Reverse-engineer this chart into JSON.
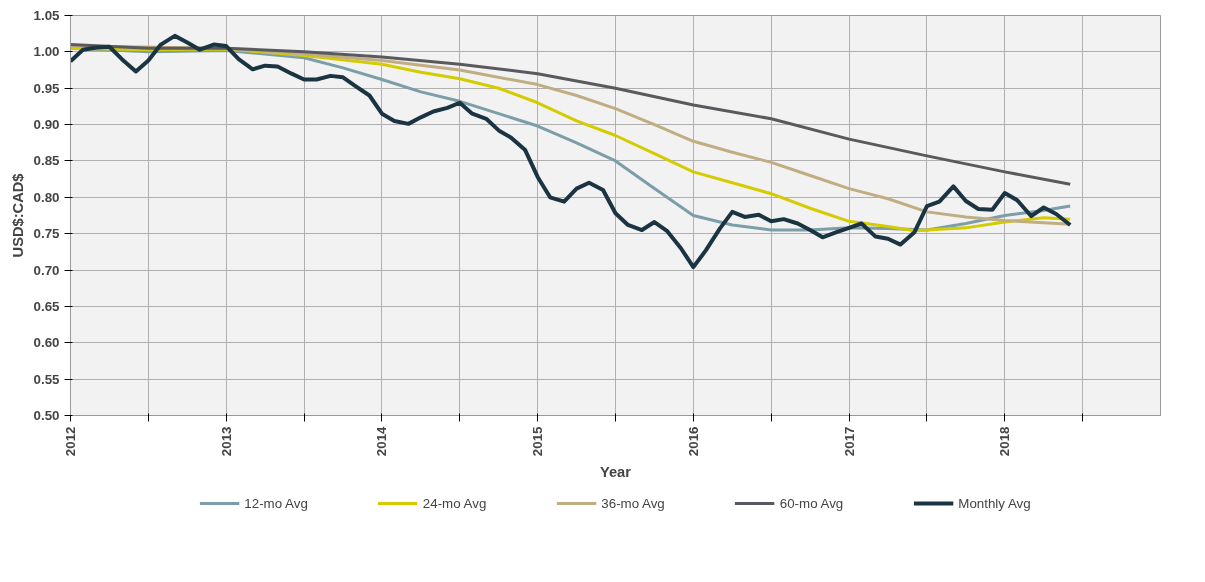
{
  "chart_data": {
    "type": "line",
    "xlabel": "Year",
    "ylabel": "USD$:CAD$",
    "xlim": [
      2012,
      2019
    ],
    "ylim": [
      0.5,
      1.05
    ],
    "xticks": [
      2012,
      {
        "value": 2012.5,
        "label": null
      },
      2013,
      {
        "value": 2013.5,
        "label": null
      },
      2014,
      {
        "value": 2014.5,
        "label": null
      },
      2015,
      {
        "value": 2015.5,
        "label": null
      },
      2016,
      {
        "value": 2016.5,
        "label": null
      },
      2017,
      {
        "value": 2017.5,
        "label": null
      },
      2018,
      {
        "value": 2018.5,
        "label": null
      }
    ],
    "yticks": [
      {
        "value": 0.5,
        "label": "0.50"
      },
      {
        "value": 0.55,
        "label": "0.55"
      },
      {
        "value": 0.6,
        "label": "0.60"
      },
      {
        "value": 0.65,
        "label": "0.65"
      },
      {
        "value": 0.7,
        "label": "0.70"
      },
      {
        "value": 0.75,
        "label": "0.75"
      },
      {
        "value": 0.8,
        "label": "0.80"
      },
      {
        "value": 0.85,
        "label": "0.85"
      },
      {
        "value": 0.9,
        "label": "0.90"
      },
      {
        "value": 0.95,
        "label": "0.95"
      },
      {
        "value": 1.0,
        "label": "1.00"
      },
      {
        "value": 1.05,
        "label": "1.05"
      }
    ],
    "grid": true,
    "legend": "bottom",
    "marker": "none",
    "line_style": "solid",
    "series": [
      {
        "name": "12-mo Avg",
        "color": "#7b9ea8",
        "x": [
          2012,
          2012.5,
          2013,
          2013.5,
          2013.75,
          2014,
          2014.25,
          2014.5,
          2014.75,
          2015,
          2015.25,
          2015.5,
          2015.75,
          2016,
          2016.25,
          2016.5,
          2016.75,
          2017,
          2017.25,
          2017.5,
          2017.75,
          2018,
          2018.25,
          2018.42
        ],
        "values": [
          1.005,
          1.0,
          1.002,
          0.992,
          0.978,
          0.962,
          0.945,
          0.932,
          0.915,
          0.898,
          0.875,
          0.85,
          0.812,
          0.775,
          0.762,
          0.755,
          0.755,
          0.758,
          0.757,
          0.755,
          0.764,
          0.775,
          0.782,
          0.788
        ]
      },
      {
        "name": "24-mo Avg",
        "color": "#d4cc00",
        "x": [
          2012,
          2012.5,
          2013,
          2013.5,
          2014,
          2014.25,
          2014.5,
          2014.75,
          2015,
          2015.25,
          2015.5,
          2015.75,
          2016,
          2016.25,
          2016.5,
          2016.75,
          2017,
          2017.25,
          2017.42,
          2017.75,
          2018,
          2018.25,
          2018.42
        ],
        "values": [
          1.005,
          1.003,
          1.004,
          0.995,
          0.983,
          0.972,
          0.963,
          0.95,
          0.93,
          0.905,
          0.885,
          0.86,
          0.835,
          0.82,
          0.805,
          0.785,
          0.767,
          0.76,
          0.754,
          0.758,
          0.766,
          0.772,
          0.77
        ]
      },
      {
        "name": "36-mo Avg",
        "color": "#c0ae82",
        "x": [
          2012,
          2013,
          2013.5,
          2014,
          2014.5,
          2015,
          2015.25,
          2015.5,
          2015.75,
          2016,
          2016.25,
          2016.5,
          2016.75,
          2017,
          2017.25,
          2017.5,
          2017.75,
          2018,
          2018.42
        ],
        "values": [
          1.008,
          1.005,
          0.997,
          0.988,
          0.975,
          0.955,
          0.94,
          0.922,
          0.9,
          0.877,
          0.862,
          0.848,
          0.83,
          0.812,
          0.798,
          0.78,
          0.773,
          0.768,
          0.763
        ]
      },
      {
        "name": "60-mo Avg",
        "color": "#5a5a5e",
        "x": [
          2012,
          2012.5,
          2013,
          2013.5,
          2014,
          2014.5,
          2015,
          2015.5,
          2016,
          2016.5,
          2017,
          2017.5,
          2018,
          2018.42
        ],
        "values": [
          1.01,
          1.005,
          1.005,
          1.0,
          0.993,
          0.983,
          0.97,
          0.95,
          0.927,
          0.908,
          0.88,
          0.857,
          0.835,
          0.818
        ]
      },
      {
        "name": "Monthly Avg",
        "color": "#1b3442",
        "x": [
          2012,
          2012.08,
          2012.17,
          2012.25,
          2012.33,
          2012.42,
          2012.5,
          2012.58,
          2012.67,
          2012.75,
          2012.83,
          2012.92,
          2013,
          2013.08,
          2013.17,
          2013.25,
          2013.33,
          2013.42,
          2013.5,
          2013.58,
          2013.67,
          2013.75,
          2013.83,
          2013.92,
          2014,
          2014.08,
          2014.17,
          2014.25,
          2014.33,
          2014.42,
          2014.5,
          2014.58,
          2014.67,
          2014.75,
          2014.83,
          2014.92,
          2015,
          2015.08,
          2015.17,
          2015.25,
          2015.33,
          2015.42,
          2015.5,
          2015.58,
          2015.67,
          2015.75,
          2015.83,
          2015.92,
          2016,
          2016.08,
          2016.17,
          2016.25,
          2016.33,
          2016.42,
          2016.5,
          2016.58,
          2016.67,
          2016.75,
          2016.83,
          2016.92,
          2017,
          2017.08,
          2017.17,
          2017.25,
          2017.33,
          2017.42,
          2017.5,
          2017.58,
          2017.67,
          2017.75,
          2017.83,
          2017.92,
          2018,
          2018.08,
          2018.17,
          2018.25,
          2018.33,
          2018.42
        ],
        "values": [
          0.987,
          1.003,
          1.006,
          1.007,
          0.99,
          0.973,
          0.988,
          1.01,
          1.022,
          1.013,
          1.003,
          1.01,
          1.008,
          0.99,
          0.976,
          0.981,
          0.98,
          0.97,
          0.962,
          0.962,
          0.967,
          0.965,
          0.953,
          0.94,
          0.915,
          0.905,
          0.901,
          0.91,
          0.918,
          0.923,
          0.93,
          0.915,
          0.908,
          0.892,
          0.882,
          0.865,
          0.828,
          0.8,
          0.794,
          0.812,
          0.82,
          0.81,
          0.778,
          0.762,
          0.755,
          0.766,
          0.754,
          0.73,
          0.704,
          0.727,
          0.757,
          0.78,
          0.773,
          0.776,
          0.767,
          0.77,
          0.764,
          0.755,
          0.745,
          0.752,
          0.758,
          0.764,
          0.746,
          0.743,
          0.735,
          0.752,
          0.788,
          0.794,
          0.815,
          0.795,
          0.784,
          0.783,
          0.806,
          0.796,
          0.774,
          0.786,
          0.777,
          0.762
        ]
      }
    ]
  }
}
